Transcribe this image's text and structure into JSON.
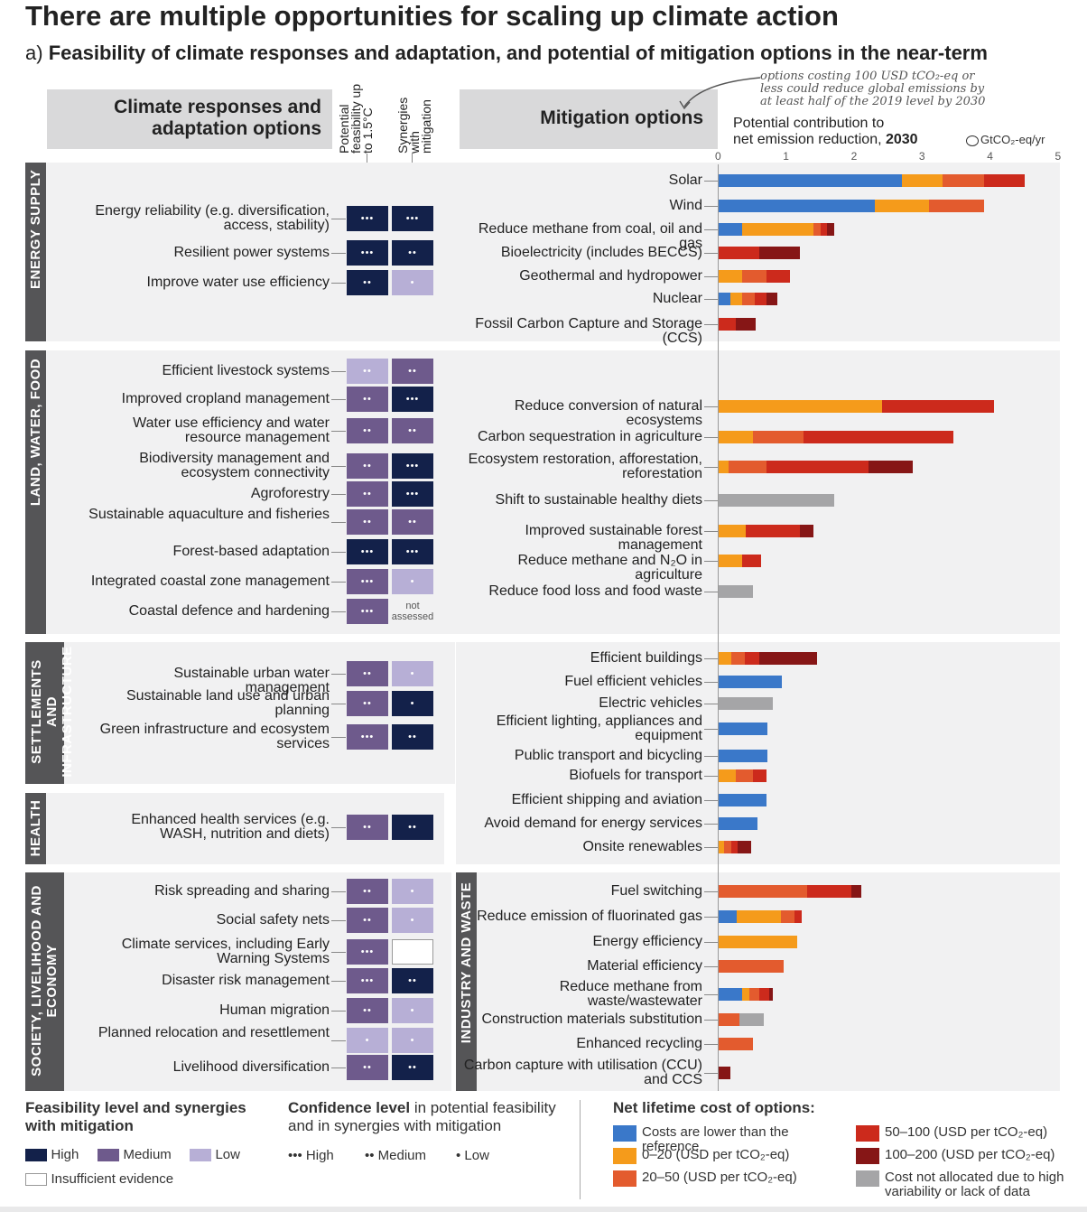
{
  "title": "There are multiple opportunities for scaling up climate action",
  "subtitle_prefix": "a)",
  "subtitle": "Feasibility of climate responses and adaptation, and potential of mitigation options in the near-term",
  "header": {
    "responses": "Climate responses and adaptation options",
    "feasibility": "Potential feasibility up to 1.5°C",
    "synergies": "Synergies with mitigation",
    "mitigation": "Mitigation options",
    "potential_line1": "Potential contribution to",
    "potential_line2": "net emission reduction,",
    "potential_year": "2030",
    "unit": "GtCO₂-eq/yr",
    "note": "options costing 100 USD tCO₂-eq or less could reduce global emissions by at least half of the 2019 level by 2030",
    "not_assessed": "not assessed"
  },
  "sectors": {
    "energy": "ENERGY SUPPLY",
    "land": "LAND, WATER, FOOD",
    "settlements": "SETTLEMENTS AND INFRASTRUCTURE",
    "health": "HEALTH",
    "society": "SOCIETY, LIVELIHOOD AND ECONOMY",
    "industry": "INDUSTRY AND WASTE"
  },
  "responses": [
    {
      "label": "Energy reliability (e.g. diversification, access, stability)",
      "feas": "high",
      "feas_conf": "•••",
      "syn": "high",
      "syn_conf": "•••"
    },
    {
      "label": "Resilient power systems",
      "feas": "high",
      "feas_conf": "•••",
      "syn": "high",
      "syn_conf": "••"
    },
    {
      "label": "Improve water use efficiency",
      "feas": "high",
      "feas_conf": "••",
      "syn": "low",
      "syn_conf": "•"
    },
    {
      "label": "Efficient livestock systems",
      "feas": "low",
      "feas_conf": "••",
      "syn": "medium",
      "syn_conf": "••"
    },
    {
      "label": "Improved cropland management",
      "feas": "medium",
      "feas_conf": "••",
      "syn": "high",
      "syn_conf": "•••"
    },
    {
      "label": "Water use efficiency and water resource management",
      "feas": "medium",
      "feas_conf": "••",
      "syn": "medium",
      "syn_conf": "••"
    },
    {
      "label": "Biodiversity management and ecosystem connectivity",
      "feas": "medium",
      "feas_conf": "••",
      "syn": "high",
      "syn_conf": "•••"
    },
    {
      "label": "Agroforestry",
      "feas": "medium",
      "feas_conf": "••",
      "syn": "high",
      "syn_conf": "•••"
    },
    {
      "label": "Sustainable aquaculture and fisheries",
      "feas": "medium",
      "feas_conf": "••",
      "syn": "medium",
      "syn_conf": "••"
    },
    {
      "label": "Forest-based adaptation",
      "feas": "high",
      "feas_conf": "•••",
      "syn": "high",
      "syn_conf": "•••"
    },
    {
      "label": "Integrated coastal zone management",
      "feas": "medium",
      "feas_conf": "•••",
      "syn": "low",
      "syn_conf": "•"
    },
    {
      "label": "Coastal defence and hardening",
      "feas": "medium",
      "feas_conf": "•••",
      "syn": "na",
      "syn_conf": ""
    },
    {
      "label": "Sustainable urban water management",
      "feas": "medium",
      "feas_conf": "••",
      "syn": "low",
      "syn_conf": "•"
    },
    {
      "label": "Sustainable land use and urban planning",
      "feas": "medium",
      "feas_conf": "••",
      "syn": "high",
      "syn_conf": "•"
    },
    {
      "label": "Green infrastructure and ecosystem services",
      "feas": "medium",
      "feas_conf": "•••",
      "syn": "high",
      "syn_conf": "••"
    },
    {
      "label": "Enhanced health services (e.g. WASH, nutrition and diets)",
      "feas": "medium",
      "feas_conf": "••",
      "syn": "high",
      "syn_conf": "••"
    },
    {
      "label": "Risk spreading and sharing",
      "feas": "medium",
      "feas_conf": "••",
      "syn": "low",
      "syn_conf": "•"
    },
    {
      "label": "Social safety nets",
      "feas": "medium",
      "feas_conf": "••",
      "syn": "low",
      "syn_conf": "•"
    },
    {
      "label": "Climate services, including Early Warning Systems",
      "feas": "medium",
      "feas_conf": "•••",
      "syn": "none",
      "syn_conf": ""
    },
    {
      "label": "Disaster risk management",
      "feas": "medium",
      "feas_conf": "•••",
      "syn": "high",
      "syn_conf": "••"
    },
    {
      "label": "Human migration",
      "feas": "medium",
      "feas_conf": "••",
      "syn": "low",
      "syn_conf": "•"
    },
    {
      "label": "Planned relocation and resettlement",
      "feas": "low",
      "feas_conf": "•",
      "syn": "low",
      "syn_conf": "•"
    },
    {
      "label": "Livelihood diversification",
      "feas": "medium",
      "feas_conf": "••",
      "syn": "high",
      "syn_conf": "••"
    }
  ],
  "colors": {
    "blue": "#3a78c9",
    "orange": "#f59b1b",
    "orange_red": "#e35b2e",
    "red": "#cc2a1c",
    "dark_red": "#861616",
    "grey": "#a5a5a7",
    "feas_high": "#13214a",
    "feas_medium": "#6e5a8c",
    "feas_low": "#b7afd6",
    "panel": "#f1f1f2",
    "sidetab": "#555557"
  },
  "chart_data": {
    "type": "bar",
    "orientation": "horizontal",
    "stacked": true,
    "xlim": [
      0,
      5
    ],
    "xticks": [
      0,
      1,
      2,
      3,
      4,
      5
    ],
    "series": [
      {
        "name": "Costs are lower than the reference",
        "color": "#3a78c9"
      },
      {
        "name": "0–20 (USD per tCO₂-eq)",
        "color": "#f59b1b"
      },
      {
        "name": "20–50 (USD per tCO₂-eq)",
        "color": "#e35b2e"
      },
      {
        "name": "50–100 (USD per tCO₂-eq)",
        "color": "#cc2a1c"
      },
      {
        "name": "100–200 (USD per tCO₂-eq)",
        "color": "#861616"
      },
      {
        "name": "Cost not allocated due to high variability or lack of data",
        "color": "#a5a5a7"
      }
    ],
    "categories": [
      {
        "label": "Solar",
        "values": [
          2.7,
          0.6,
          0.6,
          0.6,
          0,
          0
        ]
      },
      {
        "label": "Wind",
        "values": [
          2.3,
          0.8,
          0.8,
          0,
          0,
          0
        ]
      },
      {
        "label": "Reduce methane from coal, oil and gas",
        "values": [
          0.35,
          1.05,
          0.1,
          0.1,
          0.1,
          0
        ]
      },
      {
        "label": "Bioelectricity (includes BECCS)",
        "values": [
          0,
          0,
          0,
          0.6,
          0.6,
          0
        ]
      },
      {
        "label": "Geothermal and hydropower",
        "values": [
          0,
          0.35,
          0.35,
          0.35,
          0,
          0
        ]
      },
      {
        "label": "Nuclear",
        "values": [
          0.17,
          0.18,
          0.18,
          0.18,
          0.15,
          0
        ]
      },
      {
        "label": "Fossil Carbon Capture and Storage (CCS)",
        "values": [
          0,
          0,
          0,
          0.25,
          0.3,
          0
        ]
      },
      {
        "label": "Reduce conversion of natural ecosystems",
        "values": [
          0,
          2.4,
          0,
          1.65,
          0,
          0
        ]
      },
      {
        "label": "Carbon sequestration in agriculture",
        "values": [
          0,
          0.5,
          0.75,
          2.2,
          0,
          0
        ]
      },
      {
        "label": "Ecosystem restoration, afforestation, reforestation",
        "values": [
          0,
          0.15,
          0.55,
          1.5,
          0.65,
          0
        ]
      },
      {
        "label": "Shift to sustainable healthy diets",
        "values": [
          0,
          0,
          0,
          0,
          0,
          1.7
        ]
      },
      {
        "label": "Improved sustainable forest management",
        "values": [
          0,
          0.4,
          0,
          0.8,
          0.2,
          0
        ]
      },
      {
        "label": "Reduce methane and N₂O in agriculture",
        "values": [
          0,
          0.35,
          0,
          0.28,
          0,
          0
        ]
      },
      {
        "label": "Reduce food loss and food waste",
        "values": [
          0,
          0,
          0,
          0,
          0,
          0.5
        ]
      },
      {
        "label": "Efficient buildings",
        "values": [
          0,
          0.18,
          0.2,
          0.22,
          0.85,
          0
        ]
      },
      {
        "label": "Fuel efficient vehicles",
        "values": [
          0.93,
          0,
          0,
          0,
          0,
          0
        ]
      },
      {
        "label": "Electric vehicles",
        "values": [
          0,
          0,
          0,
          0,
          0,
          0.8
        ]
      },
      {
        "label": "Efficient lighting, appliances and equipment",
        "values": [
          0.72,
          0,
          0,
          0,
          0,
          0
        ]
      },
      {
        "label": "Public transport and bicycling",
        "values": [
          0.72,
          0,
          0,
          0,
          0,
          0
        ]
      },
      {
        "label": "Biofuels for transport",
        "values": [
          0,
          0.25,
          0.25,
          0.2,
          0,
          0
        ]
      },
      {
        "label": "Efficient shipping and aviation",
        "values": [
          0.7,
          0,
          0,
          0,
          0,
          0
        ]
      },
      {
        "label": "Avoid demand for energy services",
        "values": [
          0.57,
          0,
          0,
          0,
          0,
          0
        ]
      },
      {
        "label": "Onsite renewables",
        "values": [
          0,
          0.08,
          0.1,
          0.1,
          0.2,
          0
        ]
      },
      {
        "label": "Fuel switching",
        "values": [
          0,
          0,
          1.3,
          0.65,
          0.15,
          0
        ]
      },
      {
        "label": "Reduce emission of fluorinated gas",
        "values": [
          0.27,
          0.65,
          0.2,
          0.1,
          0,
          0
        ]
      },
      {
        "label": "Energy efficiency",
        "values": [
          0,
          1.15,
          0,
          0,
          0,
          0
        ]
      },
      {
        "label": "Material efficiency",
        "values": [
          0,
          0,
          0.95,
          0,
          0,
          0
        ]
      },
      {
        "label": "Reduce methane from waste/wastewater",
        "values": [
          0.35,
          0.1,
          0.15,
          0.15,
          0.05,
          0
        ]
      },
      {
        "label": "Construction materials substitution",
        "values": [
          0,
          0,
          0.3,
          0,
          0,
          0.37
        ]
      },
      {
        "label": "Enhanced recycling",
        "values": [
          0,
          0,
          0.5,
          0,
          0,
          0
        ]
      },
      {
        "label": "Carbon capture with utilisation (CCU) and CCS",
        "values": [
          0,
          0,
          0,
          0,
          0.17,
          0
        ]
      }
    ]
  },
  "legend": {
    "feas_title": "Feasibility level and synergies with mitigation",
    "high": "High",
    "medium": "Medium",
    "low": "Low",
    "insufficient": "Insufficient evidence",
    "conf_title_bold": "Confidence level",
    "conf_title_rest": "in potential feasibility and in synergies with mitigation",
    "conf_high": "••• High",
    "conf_medium": "•• Medium",
    "conf_low": "• Low",
    "cost_title": "Net lifetime cost of options:",
    "cost_items": [
      "Costs are lower than the reference",
      "0–20 (USD per tCO₂-eq)",
      "20–50 (USD per tCO₂-eq)",
      "50–100 (USD per tCO₂-eq)",
      "100–200 (USD per tCO₂-eq)",
      "Cost not allocated due to high variability or lack of data"
    ]
  }
}
